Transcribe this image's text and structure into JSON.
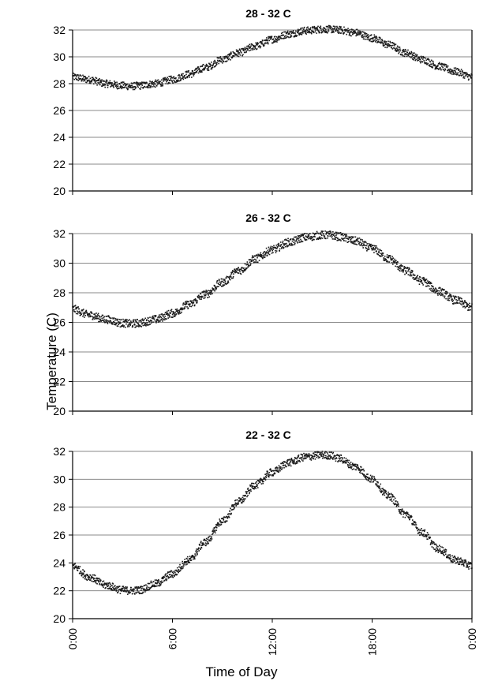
{
  "figure": {
    "ylabel": "Temperature (C)",
    "xlabel": "Time of Day"
  },
  "chart_data": [
    {
      "type": "scatter",
      "title": "28 - 32 C",
      "ylim": [
        20,
        32
      ],
      "yticks": [
        "20",
        "22",
        "24",
        "26",
        "28",
        "30",
        "32"
      ],
      "xlim": [
        0,
        24
      ],
      "xticks": [
        "0:00",
        "6:00",
        "12:00",
        "18:00",
        "0:00"
      ],
      "grid": true,
      "series": [
        {
          "x": [
            0,
            1,
            2,
            3,
            3.5,
            4,
            5,
            6,
            7,
            8,
            9,
            10,
            11,
            12,
            13,
            14,
            15,
            15.5,
            16,
            17,
            18,
            19,
            20,
            21,
            22,
            23,
            24
          ],
          "y": [
            28.5,
            28.3,
            28.0,
            27.85,
            27.8,
            27.85,
            28.0,
            28.3,
            28.7,
            29.2,
            29.8,
            30.3,
            30.8,
            31.3,
            31.7,
            31.95,
            32.05,
            32.05,
            32.0,
            31.8,
            31.4,
            30.9,
            30.3,
            29.8,
            29.3,
            28.9,
            28.5
          ]
        }
      ]
    },
    {
      "type": "scatter",
      "title": "26 - 32 C",
      "ylim": [
        20,
        32
      ],
      "yticks": [
        "20",
        "22",
        "24",
        "26",
        "28",
        "30",
        "32"
      ],
      "xlim": [
        0,
        24
      ],
      "xticks": [
        "0:00",
        "6:00",
        "12:00",
        "18:00",
        "0:00"
      ],
      "grid": true,
      "series": [
        {
          "x": [
            0,
            1,
            2,
            3,
            3.5,
            4,
            5,
            6,
            7,
            8,
            9,
            10,
            11,
            12,
            13,
            14,
            15,
            15.5,
            16,
            17,
            18,
            19,
            20,
            21,
            22,
            23,
            24
          ],
          "y": [
            26.9,
            26.5,
            26.2,
            25.95,
            25.9,
            25.95,
            26.2,
            26.6,
            27.2,
            27.9,
            28.7,
            29.5,
            30.3,
            30.9,
            31.4,
            31.75,
            31.9,
            31.9,
            31.8,
            31.5,
            31.0,
            30.3,
            29.5,
            28.8,
            28.1,
            27.5,
            27.0
          ]
        }
      ]
    },
    {
      "type": "scatter",
      "title": "22 - 32 C",
      "ylim": [
        20,
        32
      ],
      "yticks": [
        "20",
        "22",
        "24",
        "26",
        "28",
        "30",
        "32"
      ],
      "xlim": [
        0,
        24
      ],
      "xticks": [
        "0:00",
        "6:00",
        "12:00",
        "18:00",
        "0:00"
      ],
      "grid": true,
      "series": [
        {
          "x": [
            0,
            1,
            2,
            3,
            3.5,
            4,
            5,
            6,
            7,
            8,
            9,
            10,
            11,
            12,
            13,
            14,
            15,
            15.5,
            16,
            17,
            18,
            19,
            20,
            21,
            22,
            23,
            24
          ],
          "y": [
            23.8,
            23.0,
            22.4,
            22.05,
            22.0,
            22.05,
            22.5,
            23.2,
            24.2,
            25.5,
            27.0,
            28.4,
            29.6,
            30.5,
            31.2,
            31.6,
            31.75,
            31.7,
            31.5,
            30.9,
            30.0,
            28.8,
            27.5,
            26.2,
            25.0,
            24.2,
            23.8
          ]
        }
      ]
    }
  ]
}
